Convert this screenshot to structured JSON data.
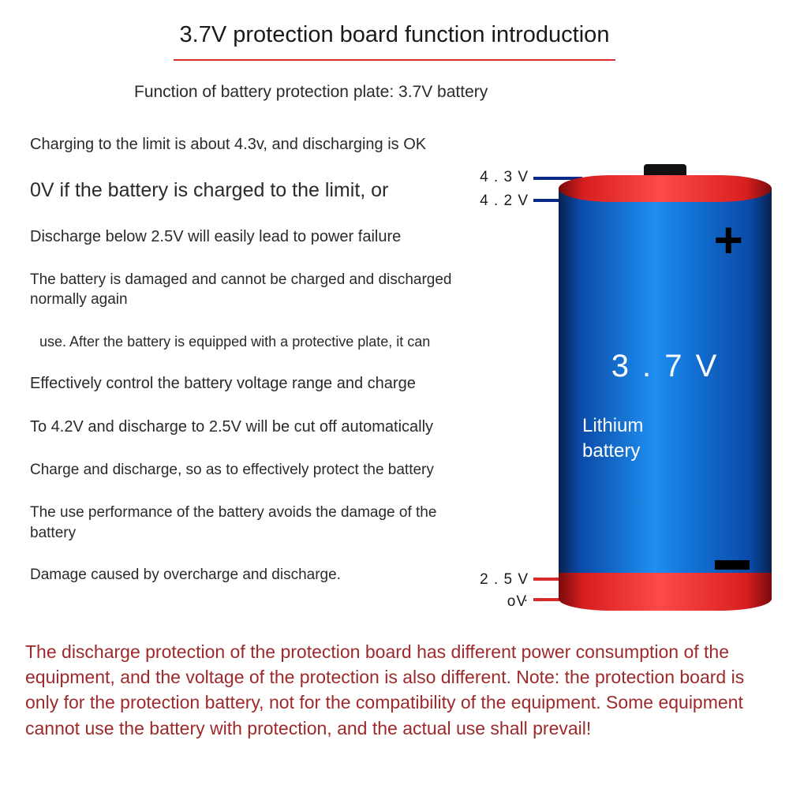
{
  "title": "3.7V protection board function introduction",
  "subtitle": "Function of battery protection plate: 3.7V battery",
  "lines": {
    "l0": "Charging to the limit is about 4.3v, and discharging is OK",
    "l1": "0V if the battery is charged to the limit, or",
    "l2": "Discharge below 2.5V will easily lead to power failure",
    "l3": "The battery is damaged and cannot be charged and discharged normally again",
    "l4": "use. After the battery is equipped with a protective plate, it can",
    "l5": "Effectively control the battery voltage range and charge",
    "l6": "To 4.2V and discharge to 2.5V will be cut off automatically",
    "l7": "Charge and discharge, so as to effectively protect the battery",
    "l8": "The use performance of the battery avoids the damage of the battery",
    "l9": "Damage caused by overcharge and discharge."
  },
  "battery": {
    "labels": {
      "v43": "4 . 3 V",
      "v42": "4 . 2 V",
      "v25": "2 . 5 V .",
      "v0": "oV"
    },
    "voltage_text": "3 . 7 V",
    "name_text": "Lithium\nbattery",
    "colors": {
      "cap_red_dark": "#7a0b0b",
      "cap_red_mid": "#d81f1f",
      "cap_red_light": "#ff4a4a",
      "body_blue_dark": "#06234f",
      "body_blue_mid": "#0b4aa8",
      "body_blue_light": "#1f8ff0",
      "line_blue": "#0a2a8a",
      "line_red": "#d82a2a",
      "text_white": "#ffffff",
      "text_black": "#000000"
    }
  },
  "footnote": "The discharge protection of the protection board has different power consumption of the equipment, and the voltage of the protection is also different. Note: the protection board is only for the protection battery, not for the compatibility of the equipment. Some equipment cannot use the battery with protection, and the actual use shall prevail!",
  "style": {
    "title_underline_color": "#d82a2a",
    "footnote_color": "#9c2a2a",
    "body_text_color": "#2a2a2a",
    "background": "#ffffff"
  }
}
